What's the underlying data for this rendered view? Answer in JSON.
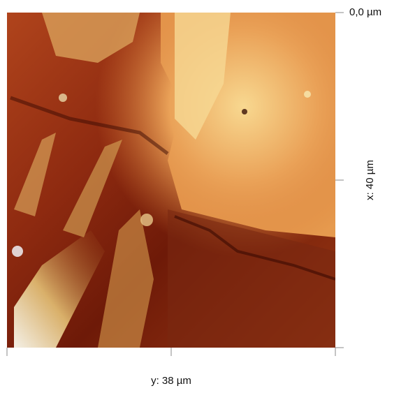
{
  "image": {
    "origin_label": "0,0 µm",
    "x_label": "x: 40 µm",
    "y_label": "y: 38 µm"
  }
}
